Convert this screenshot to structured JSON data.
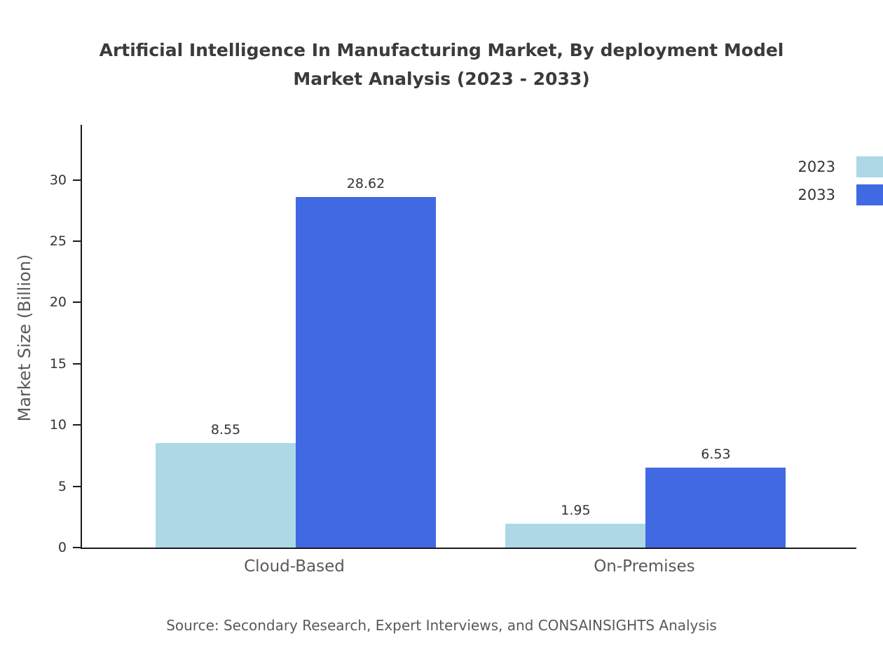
{
  "chart_data": {
    "type": "bar",
    "title_line1": "Artificial Intelligence In Manufacturing Market, By deployment Model",
    "title_line2": "Market Analysis (2023 - 2033)",
    "categories": [
      "Cloud-Based",
      "On-Premises"
    ],
    "series": [
      {
        "name": "2023",
        "color": "#add8e6",
        "values": [
          8.55,
          1.95
        ]
      },
      {
        "name": "2033",
        "color": "#4169e1",
        "values": [
          28.62,
          6.53
        ]
      }
    ],
    "value_labels": [
      [
        "8.55",
        "1.95"
      ],
      [
        "28.62",
        "6.53"
      ]
    ],
    "xlabel": "",
    "ylabel": "Market Size (Billion)",
    "yticks": [
      0,
      5,
      10,
      15,
      20,
      25,
      30
    ],
    "ylim": [
      0,
      34.5
    ],
    "grid": false,
    "legend_position": "top-right",
    "category_centers": [
      0.276,
      0.728
    ],
    "source": "Source: Secondary Research, Expert Interviews, and CONSAINSIGHTS Analysis"
  }
}
